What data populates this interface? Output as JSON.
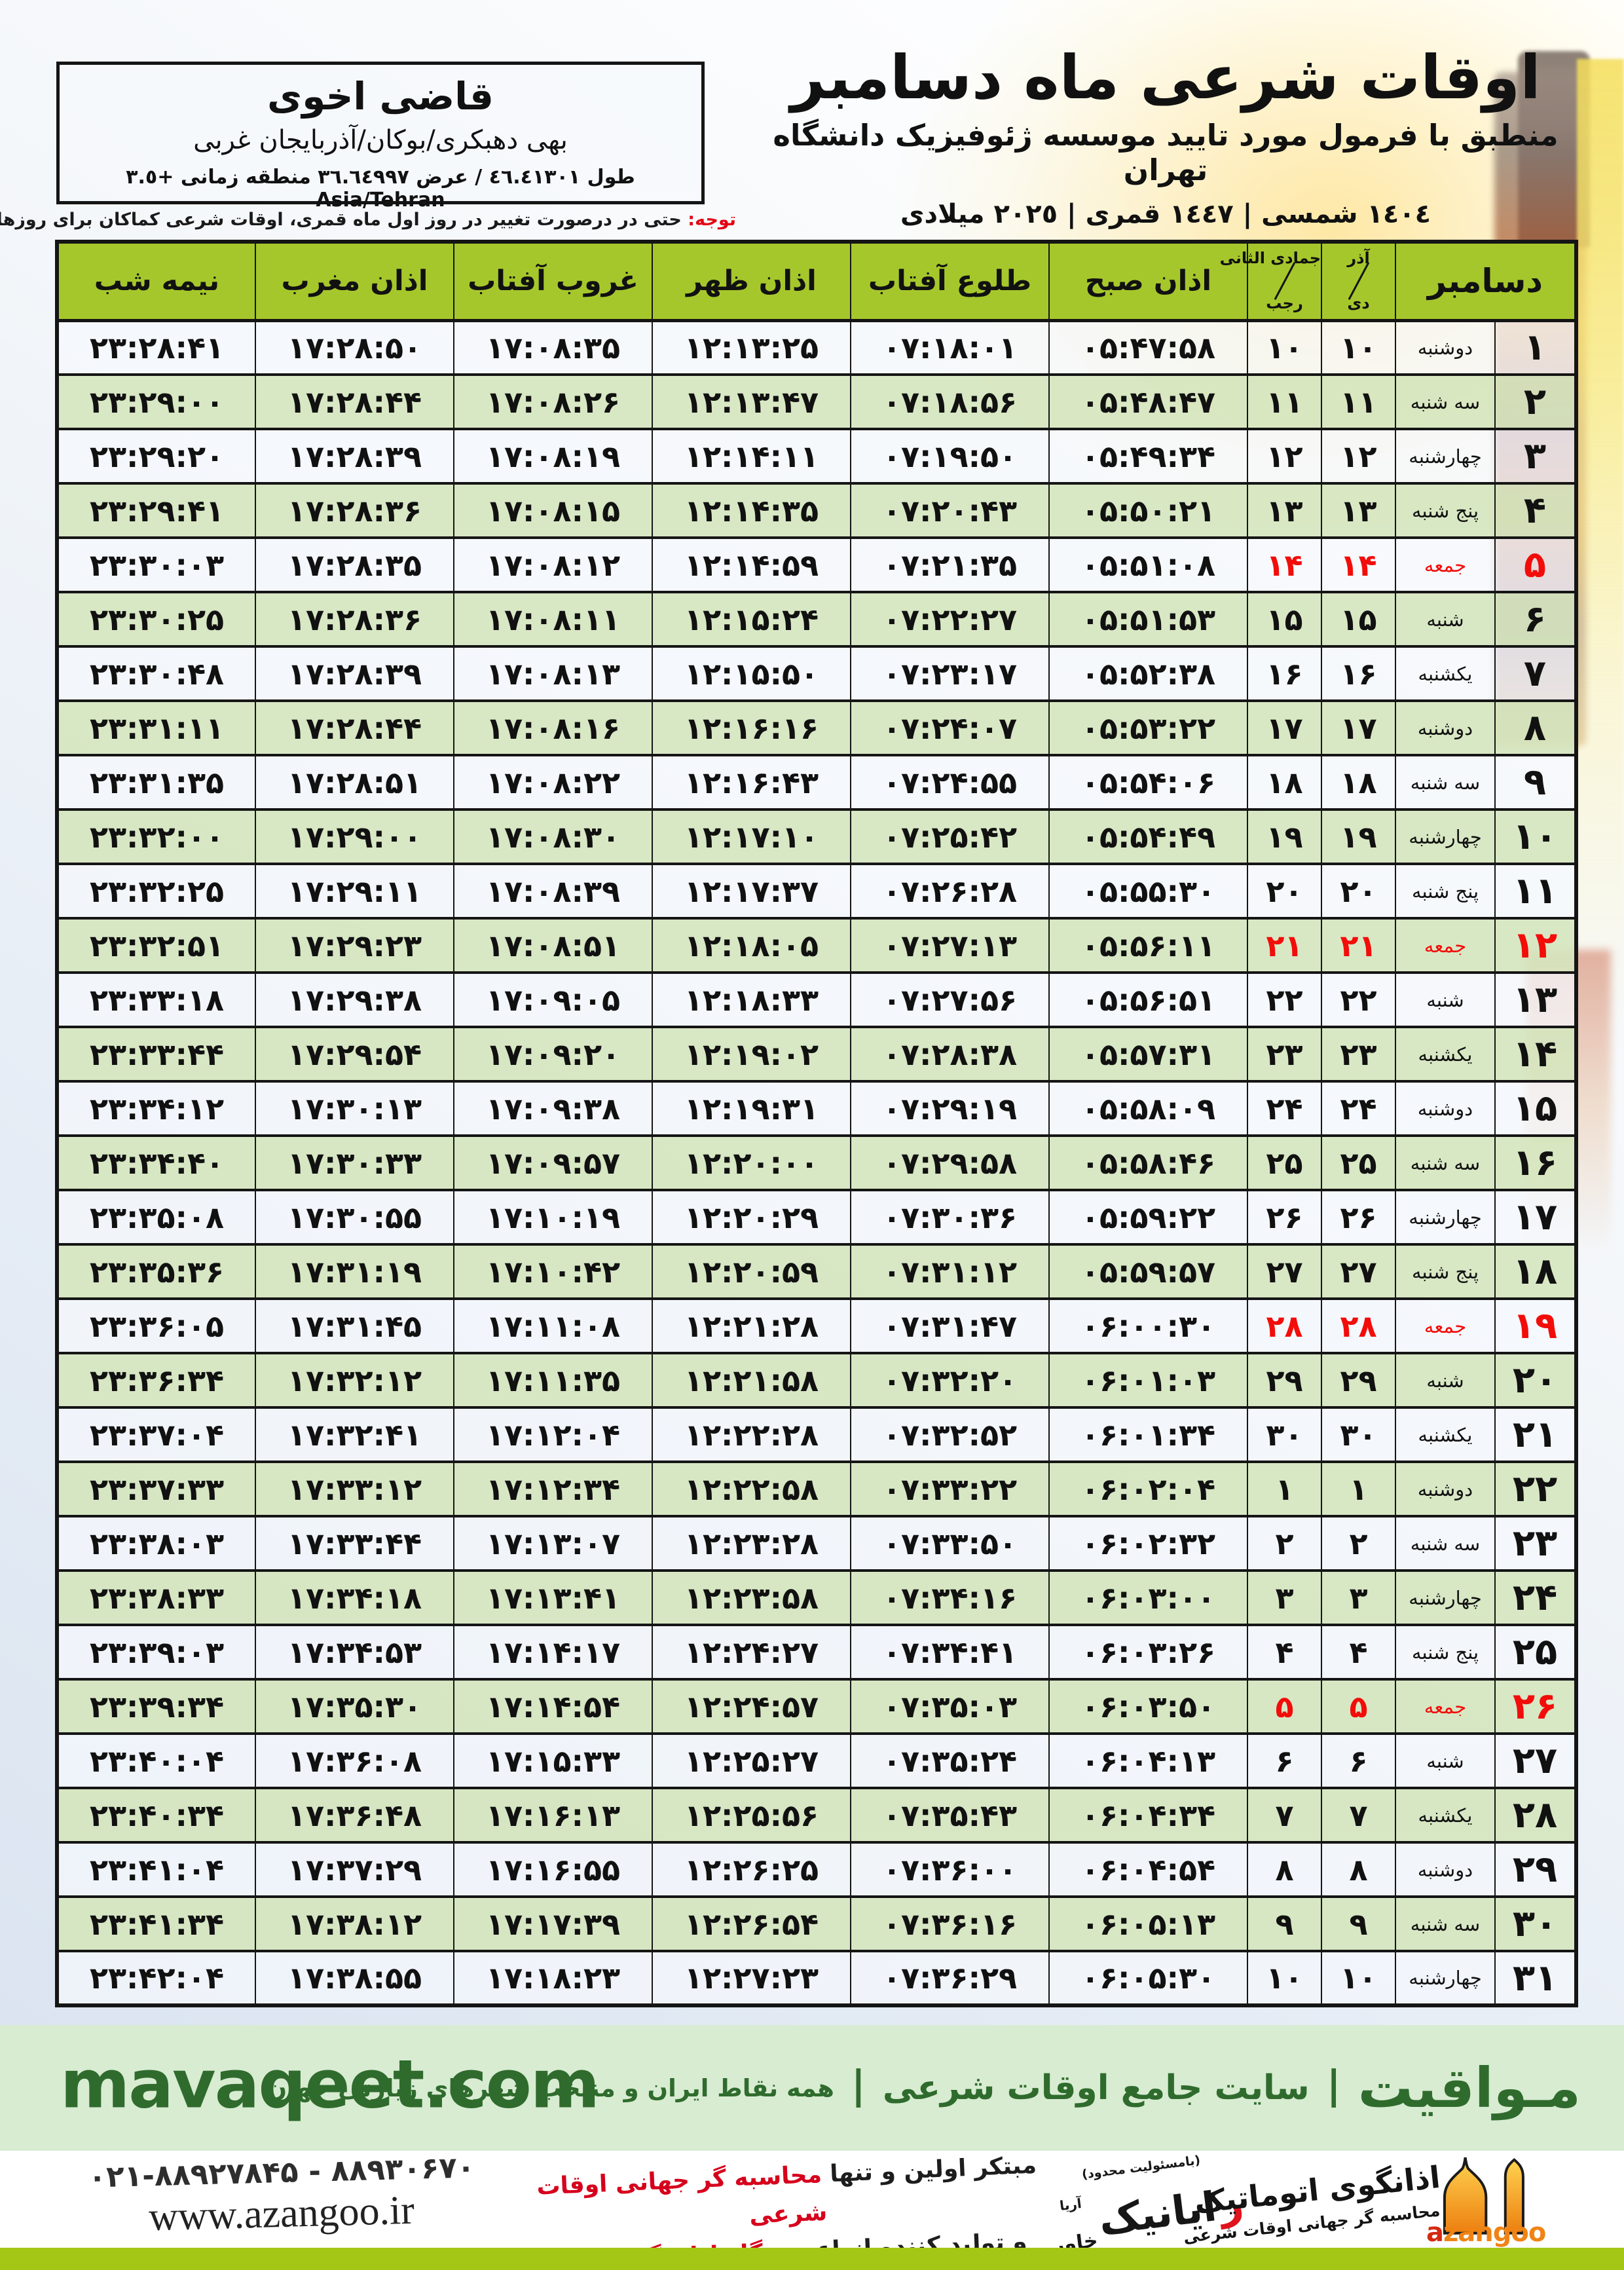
{
  "title": {
    "main": "اوقات شرعی ماه دسامبر",
    "subtitle": "منطبق با فرمول مورد تایید موسسه ژئوفیزیک دانشگاه تهران",
    "dates": "١٤٠٤ شمسی | ١٤٤٧ قمری | ٢٠٢٥ میلادی"
  },
  "location_box": {
    "name": "قاضی اخوی",
    "region": "بهی دهبکری/بوکان/آذربایجان غربی",
    "coords": "طول ٤٦.٤١٣٠١ / عرض ٣٦.٦٤٩٩٧ منطقه زمانی ‎+٣.٥ Asia/Tehran"
  },
  "note": {
    "label": "توجه:",
    "text": " حتی در درصورت تغییر در روز اول ماه قمری، اوقات شرعی کماکان برای روزهای شمسی و میلادی معتبر است."
  },
  "table": {
    "month_header": "دسامبر",
    "persian_month_top": "آذر",
    "persian_month_bottom": "دی",
    "hijri_month_top": "جمادی الثانی",
    "hijri_month_bottom": "رجب",
    "time_headers": [
      "اذان صبح",
      "طلوع آفتاب",
      "اذان ظهر",
      "غروب آفتاب",
      "اذان مغرب",
      "نیمه شب"
    ],
    "rows": [
      {
        "day": "۱",
        "weekday": "دوشنبه",
        "pday": "۱۰",
        "hday": "۱۰",
        "sobh": "۰۵:۴۷:۵۸",
        "tolu": "۰۷:۱۸:۰۱",
        "zohr": "۱۲:۱۳:۲۵",
        "ghorub": "۱۷:۰۸:۳۵",
        "maghreb": "۱۷:۲۸:۵۰",
        "nime": "۲۳:۲۸:۴۱",
        "friday": false
      },
      {
        "day": "۲",
        "weekday": "سه شنبه",
        "pday": "۱۱",
        "hday": "۱۱",
        "sobh": "۰۵:۴۸:۴۷",
        "tolu": "۰۷:۱۸:۵۶",
        "zohr": "۱۲:۱۳:۴۷",
        "ghorub": "۱۷:۰۸:۲۶",
        "maghreb": "۱۷:۲۸:۴۴",
        "nime": "۲۳:۲۹:۰۰",
        "friday": false
      },
      {
        "day": "۳",
        "weekday": "چهارشنبه",
        "pday": "۱۲",
        "hday": "۱۲",
        "sobh": "۰۵:۴۹:۳۴",
        "tolu": "۰۷:۱۹:۵۰",
        "zohr": "۱۲:۱۴:۱۱",
        "ghorub": "۱۷:۰۸:۱۹",
        "maghreb": "۱۷:۲۸:۳۹",
        "nime": "۲۳:۲۹:۲۰",
        "friday": false
      },
      {
        "day": "۴",
        "weekday": "پنج شنبه",
        "pday": "۱۳",
        "hday": "۱۳",
        "sobh": "۰۵:۵۰:۲۱",
        "tolu": "۰۷:۲۰:۴۳",
        "zohr": "۱۲:۱۴:۳۵",
        "ghorub": "۱۷:۰۸:۱۵",
        "maghreb": "۱۷:۲۸:۳۶",
        "nime": "۲۳:۲۹:۴۱",
        "friday": false
      },
      {
        "day": "۵",
        "weekday": "جمعه",
        "pday": "۱۴",
        "hday": "۱۴",
        "sobh": "۰۵:۵۱:۰۸",
        "tolu": "۰۷:۲۱:۳۵",
        "zohr": "۱۲:۱۴:۵۹",
        "ghorub": "۱۷:۰۸:۱۲",
        "maghreb": "۱۷:۲۸:۳۵",
        "nime": "۲۳:۳۰:۰۳",
        "friday": true
      },
      {
        "day": "۶",
        "weekday": "شنبه",
        "pday": "۱۵",
        "hday": "۱۵",
        "sobh": "۰۵:۵۱:۵۳",
        "tolu": "۰۷:۲۲:۲۷",
        "zohr": "۱۲:۱۵:۲۴",
        "ghorub": "۱۷:۰۸:۱۱",
        "maghreb": "۱۷:۲۸:۳۶",
        "nime": "۲۳:۳۰:۲۵",
        "friday": false
      },
      {
        "day": "۷",
        "weekday": "یکشنبه",
        "pday": "۱۶",
        "hday": "۱۶",
        "sobh": "۰۵:۵۲:۳۸",
        "tolu": "۰۷:۲۳:۱۷",
        "zohr": "۱۲:۱۵:۵۰",
        "ghorub": "۱۷:۰۸:۱۳",
        "maghreb": "۱۷:۲۸:۳۹",
        "nime": "۲۳:۳۰:۴۸",
        "friday": false
      },
      {
        "day": "۸",
        "weekday": "دوشنبه",
        "pday": "۱۷",
        "hday": "۱۷",
        "sobh": "۰۵:۵۳:۲۲",
        "tolu": "۰۷:۲۴:۰۷",
        "zohr": "۱۲:۱۶:۱۶",
        "ghorub": "۱۷:۰۸:۱۶",
        "maghreb": "۱۷:۲۸:۴۴",
        "nime": "۲۳:۳۱:۱۱",
        "friday": false
      },
      {
        "day": "۹",
        "weekday": "سه شنبه",
        "pday": "۱۸",
        "hday": "۱۸",
        "sobh": "۰۵:۵۴:۰۶",
        "tolu": "۰۷:۲۴:۵۵",
        "zohr": "۱۲:۱۶:۴۳",
        "ghorub": "۱۷:۰۸:۲۲",
        "maghreb": "۱۷:۲۸:۵۱",
        "nime": "۲۳:۳۱:۳۵",
        "friday": false
      },
      {
        "day": "۱۰",
        "weekday": "چهارشنبه",
        "pday": "۱۹",
        "hday": "۱۹",
        "sobh": "۰۵:۵۴:۴۹",
        "tolu": "۰۷:۲۵:۴۲",
        "zohr": "۱۲:۱۷:۱۰",
        "ghorub": "۱۷:۰۸:۳۰",
        "maghreb": "۱۷:۲۹:۰۰",
        "nime": "۲۳:۳۲:۰۰",
        "friday": false
      },
      {
        "day": "۱۱",
        "weekday": "پنج شنبه",
        "pday": "۲۰",
        "hday": "۲۰",
        "sobh": "۰۵:۵۵:۳۰",
        "tolu": "۰۷:۲۶:۲۸",
        "zohr": "۱۲:۱۷:۳۷",
        "ghorub": "۱۷:۰۸:۳۹",
        "maghreb": "۱۷:۲۹:۱۱",
        "nime": "۲۳:۳۲:۲۵",
        "friday": false
      },
      {
        "day": "۱۲",
        "weekday": "جمعه",
        "pday": "۲۱",
        "hday": "۲۱",
        "sobh": "۰۵:۵۶:۱۱",
        "tolu": "۰۷:۲۷:۱۳",
        "zohr": "۱۲:۱۸:۰۵",
        "ghorub": "۱۷:۰۸:۵۱",
        "maghreb": "۱۷:۲۹:۲۳",
        "nime": "۲۳:۳۲:۵۱",
        "friday": true
      },
      {
        "day": "۱۳",
        "weekday": "شنبه",
        "pday": "۲۲",
        "hday": "۲۲",
        "sobh": "۰۵:۵۶:۵۱",
        "tolu": "۰۷:۲۷:۵۶",
        "zohr": "۱۲:۱۸:۳۳",
        "ghorub": "۱۷:۰۹:۰۵",
        "maghreb": "۱۷:۲۹:۳۸",
        "nime": "۲۳:۳۳:۱۸",
        "friday": false
      },
      {
        "day": "۱۴",
        "weekday": "یکشنبه",
        "pday": "۲۳",
        "hday": "۲۳",
        "sobh": "۰۵:۵۷:۳۱",
        "tolu": "۰۷:۲۸:۳۸",
        "zohr": "۱۲:۱۹:۰۲",
        "ghorub": "۱۷:۰۹:۲۰",
        "maghreb": "۱۷:۲۹:۵۴",
        "nime": "۲۳:۳۳:۴۴",
        "friday": false
      },
      {
        "day": "۱۵",
        "weekday": "دوشنبه",
        "pday": "۲۴",
        "hday": "۲۴",
        "sobh": "۰۵:۵۸:۰۹",
        "tolu": "۰۷:۲۹:۱۹",
        "zohr": "۱۲:۱۹:۳۱",
        "ghorub": "۱۷:۰۹:۳۸",
        "maghreb": "۱۷:۳۰:۱۳",
        "nime": "۲۳:۳۴:۱۲",
        "friday": false
      },
      {
        "day": "۱۶",
        "weekday": "سه شنبه",
        "pday": "۲۵",
        "hday": "۲۵",
        "sobh": "۰۵:۵۸:۴۶",
        "tolu": "۰۷:۲۹:۵۸",
        "zohr": "۱۲:۲۰:۰۰",
        "ghorub": "۱۷:۰۹:۵۷",
        "maghreb": "۱۷:۳۰:۳۳",
        "nime": "۲۳:۳۴:۴۰",
        "friday": false
      },
      {
        "day": "۱۷",
        "weekday": "چهارشنبه",
        "pday": "۲۶",
        "hday": "۲۶",
        "sobh": "۰۵:۵۹:۲۲",
        "tolu": "۰۷:۳۰:۳۶",
        "zohr": "۱۲:۲۰:۲۹",
        "ghorub": "۱۷:۱۰:۱۹",
        "maghreb": "۱۷:۳۰:۵۵",
        "nime": "۲۳:۳۵:۰۸",
        "friday": false
      },
      {
        "day": "۱۸",
        "weekday": "پنج شنبه",
        "pday": "۲۷",
        "hday": "۲۷",
        "sobh": "۰۵:۵۹:۵۷",
        "tolu": "۰۷:۳۱:۱۲",
        "zohr": "۱۲:۲۰:۵۹",
        "ghorub": "۱۷:۱۰:۴۲",
        "maghreb": "۱۷:۳۱:۱۹",
        "nime": "۲۳:۳۵:۳۶",
        "friday": false
      },
      {
        "day": "۱۹",
        "weekday": "جمعه",
        "pday": "۲۸",
        "hday": "۲۸",
        "sobh": "۰۶:۰۰:۳۰",
        "tolu": "۰۷:۳۱:۴۷",
        "zohr": "۱۲:۲۱:۲۸",
        "ghorub": "۱۷:۱۱:۰۸",
        "maghreb": "۱۷:۳۱:۴۵",
        "nime": "۲۳:۳۶:۰۵",
        "friday": true
      },
      {
        "day": "۲۰",
        "weekday": "شنبه",
        "pday": "۲۹",
        "hday": "۲۹",
        "sobh": "۰۶:۰۱:۰۳",
        "tolu": "۰۷:۳۲:۲۰",
        "zohr": "۱۲:۲۱:۵۸",
        "ghorub": "۱۷:۱۱:۳۵",
        "maghreb": "۱۷:۳۲:۱۲",
        "nime": "۲۳:۳۶:۳۴",
        "friday": false
      },
      {
        "day": "۲۱",
        "weekday": "یکشنبه",
        "pday": "۳۰",
        "hday": "۳۰",
        "sobh": "۰۶:۰۱:۳۴",
        "tolu": "۰۷:۳۲:۵۲",
        "zohr": "۱۲:۲۲:۲۸",
        "ghorub": "۱۷:۱۲:۰۴",
        "maghreb": "۱۷:۳۲:۴۱",
        "nime": "۲۳:۳۷:۰۴",
        "friday": false
      },
      {
        "day": "۲۲",
        "weekday": "دوشنبه",
        "pday": "۱",
        "hday": "۱",
        "sobh": "۰۶:۰۲:۰۴",
        "tolu": "۰۷:۳۳:۲۲",
        "zohr": "۱۲:۲۲:۵۸",
        "ghorub": "۱۷:۱۲:۳۴",
        "maghreb": "۱۷:۳۳:۱۲",
        "nime": "۲۳:۳۷:۳۳",
        "friday": false
      },
      {
        "day": "۲۳",
        "weekday": "سه شنبه",
        "pday": "۲",
        "hday": "۲",
        "sobh": "۰۶:۰۲:۳۲",
        "tolu": "۰۷:۳۳:۵۰",
        "zohr": "۱۲:۲۳:۲۸",
        "ghorub": "۱۷:۱۳:۰۷",
        "maghreb": "۱۷:۳۳:۴۴",
        "nime": "۲۳:۳۸:۰۳",
        "friday": false
      },
      {
        "day": "۲۴",
        "weekday": "چهارشنبه",
        "pday": "۳",
        "hday": "۳",
        "sobh": "۰۶:۰۳:۰۰",
        "tolu": "۰۷:۳۴:۱۶",
        "zohr": "۱۲:۲۳:۵۸",
        "ghorub": "۱۷:۱۳:۴۱",
        "maghreb": "۱۷:۳۴:۱۸",
        "nime": "۲۳:۳۸:۳۳",
        "friday": false
      },
      {
        "day": "۲۵",
        "weekday": "پنج شنبه",
        "pday": "۴",
        "hday": "۴",
        "sobh": "۰۶:۰۳:۲۶",
        "tolu": "۰۷:۳۴:۴۱",
        "zohr": "۱۲:۲۴:۲۷",
        "ghorub": "۱۷:۱۴:۱۷",
        "maghreb": "۱۷:۳۴:۵۳",
        "nime": "۲۳:۳۹:۰۳",
        "friday": false
      },
      {
        "day": "۲۶",
        "weekday": "جمعه",
        "pday": "۵",
        "hday": "۵",
        "sobh": "۰۶:۰۳:۵۰",
        "tolu": "۰۷:۳۵:۰۳",
        "zohr": "۱۲:۲۴:۵۷",
        "ghorub": "۱۷:۱۴:۵۴",
        "maghreb": "۱۷:۳۵:۳۰",
        "nime": "۲۳:۳۹:۳۴",
        "friday": true
      },
      {
        "day": "۲۷",
        "weekday": "شنبه",
        "pday": "۶",
        "hday": "۶",
        "sobh": "۰۶:۰۴:۱۳",
        "tolu": "۰۷:۳۵:۲۴",
        "zohr": "۱۲:۲۵:۲۷",
        "ghorub": "۱۷:۱۵:۳۳",
        "maghreb": "۱۷:۳۶:۰۸",
        "nime": "۲۳:۴۰:۰۴",
        "friday": false
      },
      {
        "day": "۲۸",
        "weekday": "یکشنبه",
        "pday": "۷",
        "hday": "۷",
        "sobh": "۰۶:۰۴:۳۴",
        "tolu": "۰۷:۳۵:۴۳",
        "zohr": "۱۲:۲۵:۵۶",
        "ghorub": "۱۷:۱۶:۱۳",
        "maghreb": "۱۷:۳۶:۴۸",
        "nime": "۲۳:۴۰:۳۴",
        "friday": false
      },
      {
        "day": "۲۹",
        "weekday": "دوشنبه",
        "pday": "۸",
        "hday": "۸",
        "sobh": "۰۶:۰۴:۵۴",
        "tolu": "۰۷:۳۶:۰۰",
        "zohr": "۱۲:۲۶:۲۵",
        "ghorub": "۱۷:۱۶:۵۵",
        "maghreb": "۱۷:۳۷:۲۹",
        "nime": "۲۳:۴۱:۰۴",
        "friday": false
      },
      {
        "day": "۳۰",
        "weekday": "سه شنبه",
        "pday": "۹",
        "hday": "۹",
        "sobh": "۰۶:۰۵:۱۳",
        "tolu": "۰۷:۳۶:۱۶",
        "zohr": "۱۲:۲۶:۵۴",
        "ghorub": "۱۷:۱۷:۳۹",
        "maghreb": "۱۷:۳۸:۱۲",
        "nime": "۲۳:۴۱:۳۴",
        "friday": false
      },
      {
        "day": "۳۱",
        "weekday": "چهارشنبه",
        "pday": "۱۰",
        "hday": "۱۰",
        "sobh": "۰۶:۰۵:۳۰",
        "tolu": "۰۷:۳۶:۲۹",
        "zohr": "۱۲:۲۷:۲۳",
        "ghorub": "۱۷:۱۸:۲۳",
        "maghreb": "۱۷:۳۸:۵۵",
        "nime": "۲۳:۴۲:۰۴",
        "friday": false
      }
    ]
  },
  "mavaqeet": {
    "brand": "مـواقیت",
    "sep": "|",
    "tagline1": "سایت جامع اوقات شرعی",
    "tagline2": "همه نقاط ایران و منتخب شهرهای زیارتی جهان",
    "url": "mavaqeet.com"
  },
  "footer": {
    "phone": "۰۲۱-۸۸۹۲۷۸۴۵ - ۸۸۹۳۰۶۷۰",
    "website": "www.azangoo.ir",
    "line1_black": "مبتکر اولین و تنها ",
    "line1_red": "محاسبه گر جهانی اوقات شرعی",
    "line2_black": "و تولید کننده انواع ",
    "line2_red": "دستگاه اذان گوی تمام خودکار ماهواره ای",
    "rayanik_note": "(بامسئولیت محدود)",
    "rayanik_initial": "ر",
    "rayanik_rest": "ایانیک",
    "rayanik_sub_top": "آریا",
    "rayanik_sub_bottom": "خاور",
    "azangoo_title": "اذانگوی اتوماتیک",
    "azangoo_sub": "محاسبه گر جهانی اوقات شرعی",
    "azangoo_latin_a": "a",
    "azangoo_latin_rest": "zangoo"
  },
  "colors": {
    "header_green": "#a6c72b",
    "row_green": "#d5e6be",
    "friday_red": "#f20d0a",
    "note_red": "#e30613",
    "band_green_bg": "#d8ecd2",
    "brand_dark_green": "#2f6b2d",
    "bottom_bar_green": "#a4c716",
    "azangoo_orange": "#ef8414",
    "footer_red": "#d6001c"
  }
}
